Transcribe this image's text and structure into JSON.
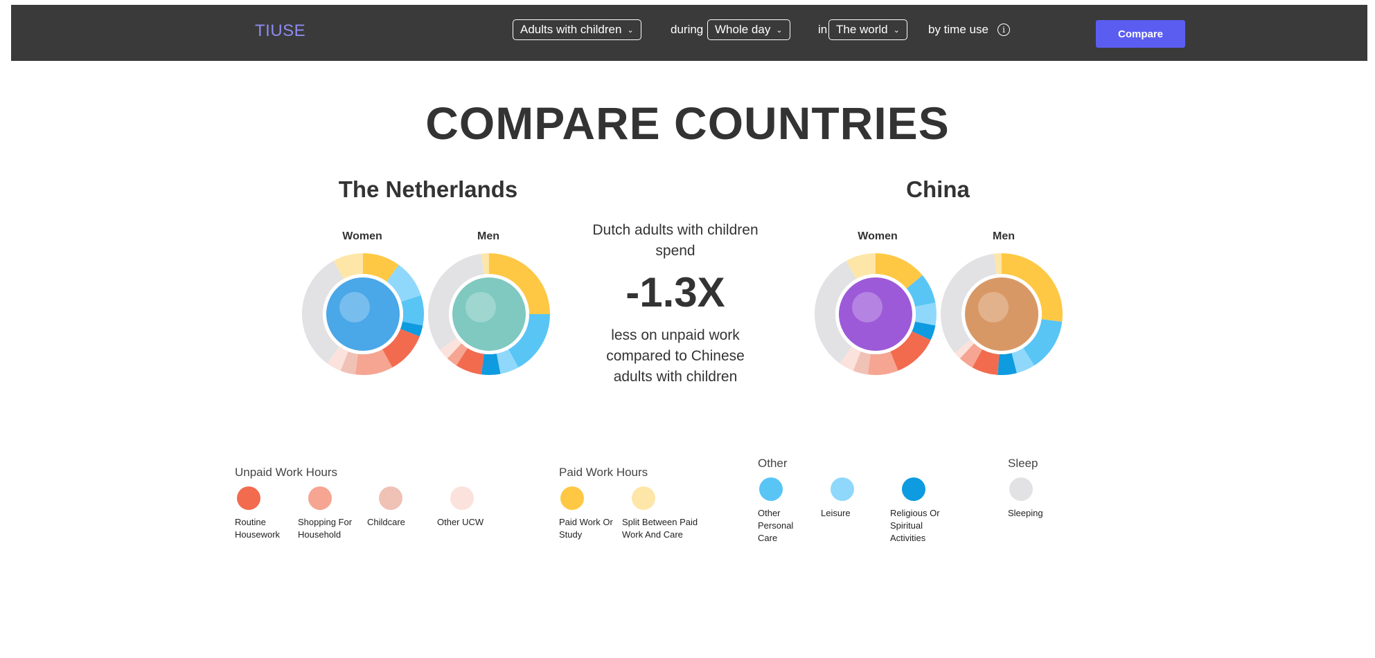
{
  "header": {
    "logo": "TIUSE",
    "group_select": "Adults with children",
    "word_during": "during",
    "period_select": "Whole day",
    "word_in": "in",
    "region_select": "The world",
    "by_time_use": "by time use",
    "info_icon": "info-icon",
    "compare_button": "Compare"
  },
  "page_title": "COMPARE COUNTRIES",
  "countries": {
    "left": {
      "name": "The Netherlands",
      "women_label": "Women",
      "men_label": "Men"
    },
    "right": {
      "name": "China",
      "women_label": "Women",
      "men_label": "Men"
    }
  },
  "comparison": {
    "line1": "Dutch adults with children spend",
    "value": "-1.3X",
    "line2": "less on unpaid work compared to Chinese adults with children"
  },
  "legend": {
    "unpaid": {
      "heading": "Unpaid Work Hours",
      "items": [
        {
          "label": "Routine Housework",
          "color": "#f26b4f"
        },
        {
          "label": "Shopping For Household",
          "color": "#f5a592"
        },
        {
          "label": "Childcare",
          "color": "#f0c1b5"
        },
        {
          "label": "Other UCW",
          "color": "#fbe2dc"
        }
      ]
    },
    "paid": {
      "heading": "Paid Work Hours",
      "items": [
        {
          "label": "Paid Work Or Study",
          "color": "#fec844"
        },
        {
          "label": "Split Between Paid Work And Care",
          "color": "#fde6a8"
        }
      ]
    },
    "other": {
      "heading": "Other",
      "items": [
        {
          "label": "Other Personal Care",
          "color": "#58c5f5"
        },
        {
          "label": "Leisure",
          "color": "#8fd8fb"
        },
        {
          "label": "Religious Or Spiritual Activities",
          "color": "#0e9be0"
        }
      ]
    },
    "sleep": {
      "heading": "Sleep",
      "items": [
        {
          "label": "Sleeping",
          "color": "#e2e2e4"
        }
      ]
    }
  },
  "donuts": [
    {
      "id": "nl-women",
      "art": "#4aa7e8",
      "segments": [
        [
          0.0,
          0.1,
          "#fec844"
        ],
        [
          0.1,
          0.2,
          "#8fd8fb"
        ],
        [
          0.2,
          0.28,
          "#58c5f5"
        ],
        [
          0.28,
          0.31,
          "#0e9be0"
        ],
        [
          0.31,
          0.42,
          "#f26b4f"
        ],
        [
          0.42,
          0.52,
          "#f5a592"
        ],
        [
          0.52,
          0.56,
          "#f0c1b5"
        ],
        [
          0.56,
          0.6,
          "#fbe2dc"
        ],
        [
          0.6,
          0.92,
          "#e2e2e4"
        ],
        [
          0.92,
          1.0,
          "#fde6a8"
        ]
      ]
    },
    {
      "id": "nl-men",
      "art": "#7fc9c0",
      "segments": [
        [
          0.0,
          0.25,
          "#fec844"
        ],
        [
          0.25,
          0.42,
          "#58c5f5"
        ],
        [
          0.42,
          0.47,
          "#8fd8fb"
        ],
        [
          0.47,
          0.52,
          "#0e9be0"
        ],
        [
          0.52,
          0.59,
          "#f26b4f"
        ],
        [
          0.59,
          0.62,
          "#f5a592"
        ],
        [
          0.62,
          0.65,
          "#fbe2dc"
        ],
        [
          0.65,
          0.98,
          "#e2e2e4"
        ],
        [
          0.98,
          1.0,
          "#fde6a8"
        ]
      ]
    },
    {
      "id": "cn-women",
      "art": "#9d5ad8",
      "segments": [
        [
          0.0,
          0.14,
          "#fec844"
        ],
        [
          0.14,
          0.22,
          "#58c5f5"
        ],
        [
          0.22,
          0.28,
          "#8fd8fb"
        ],
        [
          0.28,
          0.32,
          "#0e9be0"
        ],
        [
          0.32,
          0.44,
          "#f26b4f"
        ],
        [
          0.44,
          0.52,
          "#f5a592"
        ],
        [
          0.52,
          0.56,
          "#f0c1b5"
        ],
        [
          0.56,
          0.6,
          "#fbe2dc"
        ],
        [
          0.6,
          0.92,
          "#e2e2e4"
        ],
        [
          0.92,
          1.0,
          "#fde6a8"
        ]
      ]
    },
    {
      "id": "cn-men",
      "art": "#d89866",
      "segments": [
        [
          0.0,
          0.27,
          "#fec844"
        ],
        [
          0.27,
          0.41,
          "#58c5f5"
        ],
        [
          0.41,
          0.46,
          "#8fd8fb"
        ],
        [
          0.46,
          0.51,
          "#0e9be0"
        ],
        [
          0.51,
          0.58,
          "#f26b4f"
        ],
        [
          0.58,
          0.62,
          "#f5a592"
        ],
        [
          0.62,
          0.64,
          "#fbe2dc"
        ],
        [
          0.64,
          0.98,
          "#e2e2e4"
        ],
        [
          0.98,
          1.0,
          "#fde6a8"
        ]
      ]
    }
  ]
}
